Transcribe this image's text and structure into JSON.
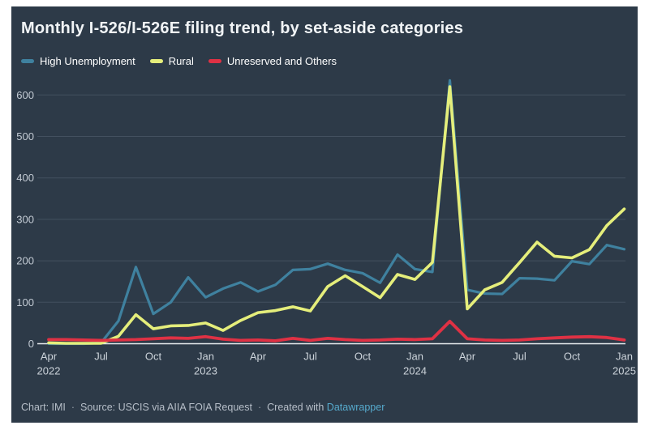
{
  "title": "Monthly I-526/I-526E filing trend, by set-aside categories",
  "legend": [
    {
      "label": "High Unemployment",
      "color": "#3f819f"
    },
    {
      "label": "Rural",
      "color": "#e5ee7b"
    },
    {
      "label": "Unreserved and Others",
      "color": "#df3144"
    }
  ],
  "footer": {
    "chart": "Chart: IMI",
    "sep": "·",
    "source": "Source: USCIS via AIIA FOIA Request",
    "created": "Created with",
    "link": "Datawrapper"
  },
  "colors": {
    "background": "#2d3a48",
    "grid": "#43505f",
    "axis_line": "#e8ecef",
    "tick_text": "#c3cbd4",
    "link": "#56aacd"
  },
  "chart_data": {
    "type": "line",
    "title": "Monthly I-526/I-526E filing trend, by set-aside categories",
    "xlabel": "",
    "ylabel": "",
    "ylim": [
      0,
      650
    ],
    "yticks": [
      0,
      100,
      200,
      300,
      400,
      500,
      600
    ],
    "grid": true,
    "legend_position": "top",
    "categories": [
      "Apr 2022",
      "May 2022",
      "Jun 2022",
      "Jul 2022",
      "Aug 2022",
      "Sep 2022",
      "Oct 2022",
      "Nov 2022",
      "Dec 2022",
      "Jan 2023",
      "Feb 2023",
      "Mar 2023",
      "Apr 2023",
      "May 2023",
      "Jun 2023",
      "Jul 2023",
      "Aug 2023",
      "Sep 2023",
      "Oct 2023",
      "Nov 2023",
      "Dec 2023",
      "Jan 2024",
      "Feb 2024",
      "Mar 2024",
      "Apr 2024",
      "May 2024",
      "Jun 2024",
      "Jul 2024",
      "Aug 2024",
      "Sep 2024",
      "Oct 2024",
      "Nov 2024",
      "Dec 2024",
      "Jan 2025"
    ],
    "xticks": [
      {
        "index": 0,
        "month": "Apr",
        "year": "2022"
      },
      {
        "index": 3,
        "month": "Jul"
      },
      {
        "index": 6,
        "month": "Oct"
      },
      {
        "index": 9,
        "month": "Jan",
        "year": "2023"
      },
      {
        "index": 12,
        "month": "Apr"
      },
      {
        "index": 15,
        "month": "Jul"
      },
      {
        "index": 18,
        "month": "Oct"
      },
      {
        "index": 21,
        "month": "Jan",
        "year": "2024"
      },
      {
        "index": 24,
        "month": "Apr"
      },
      {
        "index": 27,
        "month": "Jul"
      },
      {
        "index": 30,
        "month": "Oct"
      },
      {
        "index": 33,
        "month": "Jan",
        "year": "2025"
      }
    ],
    "series": [
      {
        "name": "High Unemployment",
        "color": "#3f819f",
        "width": 3.2,
        "values": [
          0,
          0,
          0,
          2,
          55,
          185,
          72,
          100,
          160,
          112,
          133,
          148,
          126,
          142,
          178,
          180,
          193,
          178,
          170,
          147,
          215,
          180,
          173,
          635,
          130,
          121,
          120,
          158,
          157,
          153,
          199,
          192,
          238,
          228
        ]
      },
      {
        "name": "Rural",
        "color": "#e5ee7b",
        "width": 3.6,
        "values": [
          2,
          1,
          1,
          1,
          18,
          70,
          36,
          43,
          44,
          50,
          32,
          56,
          75,
          80,
          89,
          79,
          138,
          164,
          138,
          111,
          167,
          155,
          196,
          620,
          84,
          130,
          148,
          196,
          245,
          211,
          207,
          227,
          285,
          325
        ]
      },
      {
        "name": "Unreserved and Others",
        "color": "#df3144",
        "width": 3.8,
        "values": [
          10,
          10,
          9,
          8,
          9,
          10,
          12,
          14,
          13,
          17,
          11,
          8,
          9,
          7,
          13,
          8,
          13,
          10,
          8,
          9,
          11,
          10,
          12,
          54,
          12,
          9,
          8,
          9,
          12,
          14,
          16,
          17,
          15,
          9
        ]
      }
    ]
  }
}
